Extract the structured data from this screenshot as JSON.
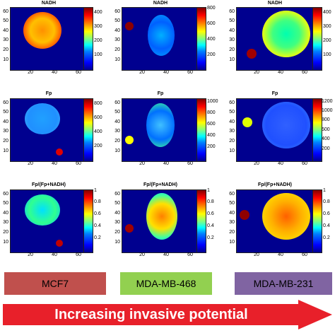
{
  "row_titles": [
    [
      "NADH",
      "NADH",
      "NADH"
    ],
    [
      "Fp",
      "Fp",
      "Fp"
    ],
    [
      "Fp/(Fp+NADH)",
      "Fp/(Fp+NADH)",
      "Fp/(Fp+NADH)"
    ]
  ],
  "x_ticks": [
    "20",
    "40",
    "60"
  ],
  "y_ticks": [
    "60",
    "50",
    "40",
    "30",
    "20",
    "10"
  ],
  "colorbars": [
    [
      [
        "400",
        "300",
        "200",
        "100"
      ],
      [
        "800",
        "600",
        "400",
        "200"
      ],
      [
        "400",
        "300",
        "200",
        "100"
      ]
    ],
    [
      [
        "800",
        "600",
        "400",
        "200"
      ],
      [
        "1000",
        "800",
        "600",
        "400",
        "200"
      ],
      [
        "1200",
        "1000",
        "800",
        "600",
        "400",
        "200"
      ]
    ],
    [
      [
        "1",
        "0.8",
        "0.6",
        "0.4",
        "0.2"
      ],
      [
        "1",
        "0.8",
        "0.6",
        "0.4",
        "0.2"
      ],
      [
        "1",
        "0.8",
        "0.6",
        "0.4",
        "0.2"
      ]
    ]
  ],
  "cell_lines": [
    {
      "label": "MCF7",
      "color": "#c0504d"
    },
    {
      "label": "MDA-MB-468",
      "color": "#92d050"
    },
    {
      "label": "MDA-MB-231",
      "color": "#8064a2"
    }
  ],
  "arrow": {
    "text": "Increasing invasive potential",
    "color": "#e8202a"
  }
}
